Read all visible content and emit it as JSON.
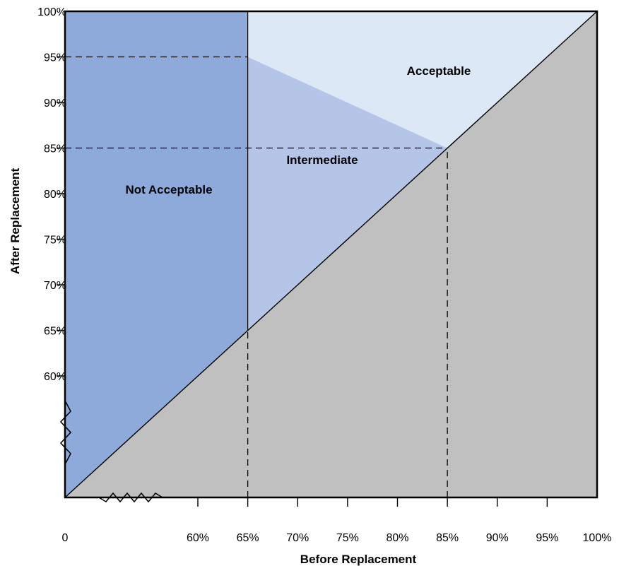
{
  "chart_data": {
    "type": "area",
    "xlabel": "Before Replacement",
    "ylabel": "After Replacement",
    "x_ticks": [
      {
        "label": "0",
        "value": 0
      },
      {
        "label": "60%",
        "value": 60
      },
      {
        "label": "65%",
        "value": 65
      },
      {
        "label": "70%",
        "value": 70
      },
      {
        "label": "75%",
        "value": 75
      },
      {
        "label": "80%",
        "value": 80
      },
      {
        "label": "85%",
        "value": 85
      },
      {
        "label": "90%",
        "value": 90
      },
      {
        "label": "95%",
        "value": 95
      },
      {
        "label": "100%",
        "value": 100
      }
    ],
    "y_ticks": [
      {
        "label": "60%",
        "value": 60
      },
      {
        "label": "65%",
        "value": 65
      },
      {
        "label": "70%",
        "value": 70
      },
      {
        "label": "75%",
        "value": 75
      },
      {
        "label": "80%",
        "value": 80
      },
      {
        "label": "85%",
        "value": 85
      },
      {
        "label": "90%",
        "value": 90
      },
      {
        "label": "95%",
        "value": 95
      },
      {
        "label": "100%",
        "value": 100
      }
    ],
    "axis_break": {
      "x": true,
      "y": true
    },
    "regions": [
      {
        "label": "Not Acceptable",
        "color": "#8eaadb",
        "polygon": [
          [
            0,
            0
          ],
          [
            0,
            100
          ],
          [
            65,
            100
          ],
          [
            65,
            65
          ]
        ]
      },
      {
        "label": "Intermediate",
        "color": "#b4c5e8",
        "polygon": [
          [
            65,
            65
          ],
          [
            65,
            95
          ],
          [
            85,
            85
          ]
        ]
      },
      {
        "label": "Acceptable",
        "color": "#dde8f6",
        "polygon": [
          [
            65,
            95
          ],
          [
            65,
            100
          ],
          [
            100,
            100
          ],
          [
            85,
            85
          ]
        ]
      },
      {
        "label": "",
        "color": "#c0c0c0",
        "polygon": [
          [
            0,
            0
          ],
          [
            100,
            0
          ],
          [
            100,
            100
          ]
        ]
      }
    ],
    "reference_lines": [
      {
        "orientation": "horizontal",
        "y": 95,
        "x_from": 0,
        "x_to": 65
      },
      {
        "orientation": "horizontal",
        "y": 85,
        "x_from": 0,
        "x_to": 85
      },
      {
        "orientation": "vertical",
        "x": 65,
        "y_from": 0,
        "y_to": 65
      },
      {
        "orientation": "vertical",
        "x": 85,
        "y_from": 0,
        "y_to": 85
      }
    ],
    "boundary_lines": [
      {
        "from": [
          0,
          0
        ],
        "to": [
          100,
          100
        ]
      },
      {
        "from": [
          65,
          65
        ],
        "to": [
          65,
          100
        ]
      }
    ],
    "grid": false,
    "legend": "none"
  }
}
